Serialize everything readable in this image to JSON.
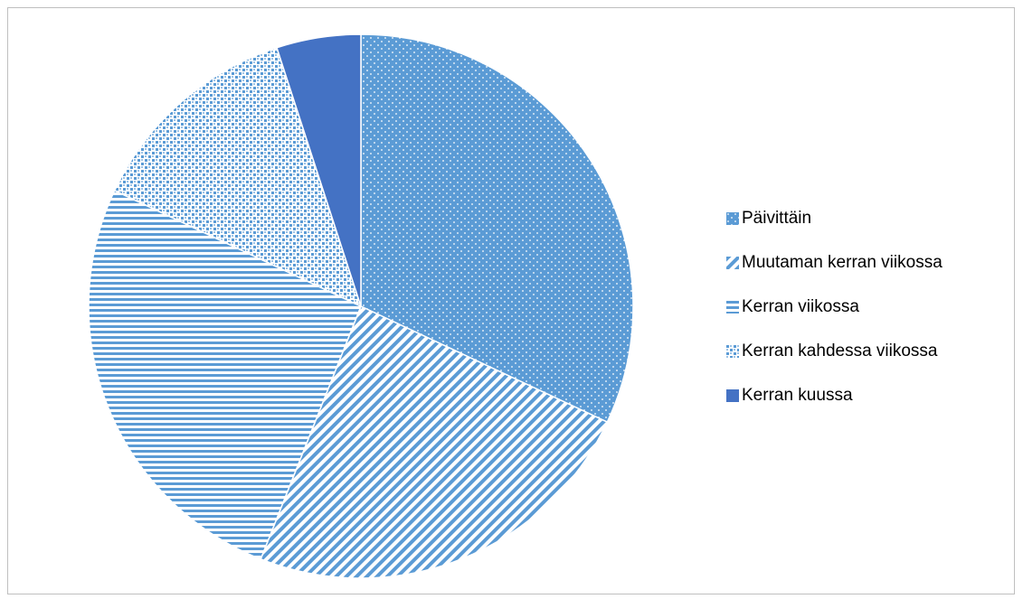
{
  "chart_data": {
    "type": "pie",
    "title": "",
    "legend_position": "right",
    "slices": [
      {
        "label": "Päivittäin",
        "value": 32,
        "pattern": "dots",
        "color": "#5B9BD5"
      },
      {
        "label": "Muutaman kerran viikossa",
        "value": 24,
        "pattern": "diagonal",
        "color": "#5B9BD5"
      },
      {
        "label": "Kerran viikossa",
        "value": 26,
        "pattern": "horizontal",
        "color": "#5B9BD5"
      },
      {
        "label": "Kerran kahdessa viikossa",
        "value": 13,
        "pattern": "checker",
        "color": "#5B9BD5"
      },
      {
        "label": "Kerran kuussa",
        "value": 5,
        "pattern": "solid",
        "color": "#4472C4"
      }
    ]
  },
  "legend": {
    "items": [
      {
        "label": "Päivittäin"
      },
      {
        "label": "Muutaman kerran viikossa"
      },
      {
        "label": "Kerran viikossa"
      },
      {
        "label": "Kerran kahdessa viikossa"
      },
      {
        "label": "Kerran kuussa"
      }
    ]
  }
}
